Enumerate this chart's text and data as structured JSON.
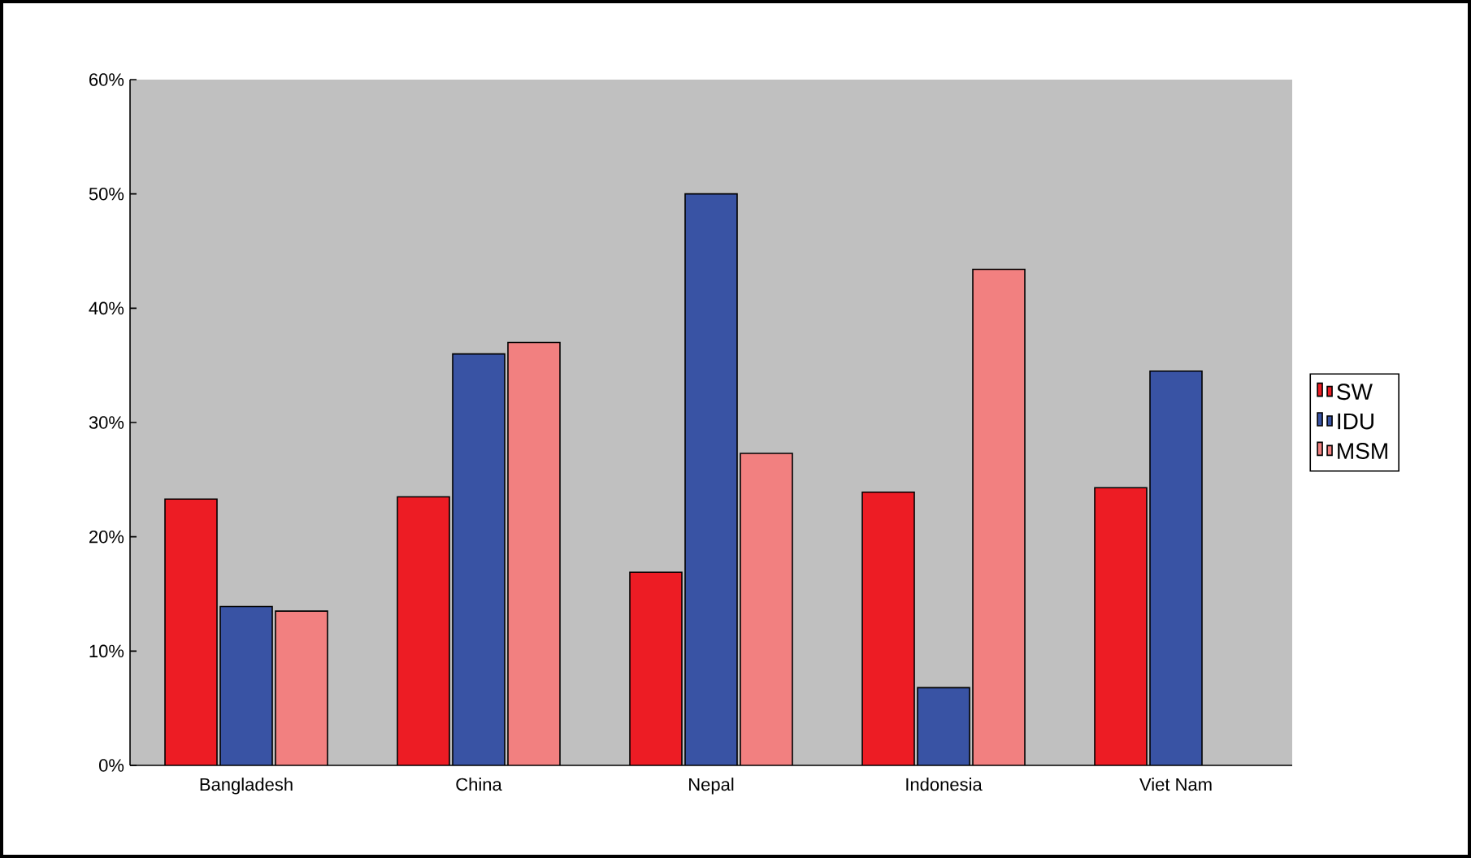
{
  "chart_data": {
    "type": "bar",
    "categories": [
      "Bangladesh",
      "China",
      "Nepal",
      "Indonesia",
      "Viet Nam"
    ],
    "series": [
      {
        "name": "SW",
        "color": "#ed1c24",
        "values": [
          23.3,
          23.5,
          16.9,
          23.9,
          24.3
        ]
      },
      {
        "name": "IDU",
        "color": "#3953a4",
        "values": [
          13.9,
          36.0,
          50.0,
          6.8,
          34.5
        ]
      },
      {
        "name": "MSM",
        "color": "#f28080",
        "values": [
          13.5,
          37.0,
          27.3,
          43.4,
          null
        ]
      }
    ],
    "ylim": [
      0,
      60
    ],
    "yticks": [
      {
        "value": 0,
        "label": "0%"
      },
      {
        "value": 10,
        "label": "10%"
      },
      {
        "value": 20,
        "label": "20%"
      },
      {
        "value": 30,
        "label": "30%"
      },
      {
        "value": 40,
        "label": "40%"
      },
      {
        "value": 50,
        "label": "50%"
      },
      {
        "value": 60,
        "label": "60%"
      }
    ],
    "legend": "right"
  }
}
